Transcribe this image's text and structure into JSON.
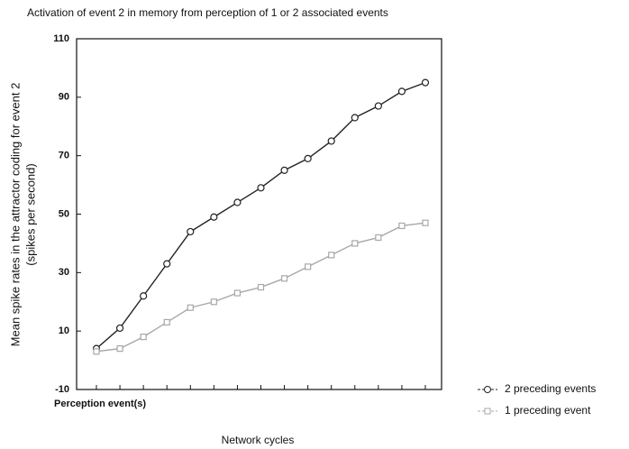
{
  "chart_data": {
    "type": "line",
    "title": "Activation of event 2 in memory from perception of 1 or 2 associated events",
    "x_label": "Network cycles",
    "y_label": [
      "Mean spike rates in the attractor coding for event 2",
      "(spikes per second)"
    ],
    "categories": [
      "Perception event(s)",
      null,
      null,
      null,
      null,
      null,
      null,
      null,
      null,
      null,
      null,
      null,
      null,
      null,
      null
    ],
    "series": [
      {
        "name": "2 preceding events",
        "color": "#222222",
        "marker": "circle",
        "values": [
          4,
          11,
          22,
          33,
          44,
          49,
          54,
          59,
          65,
          69,
          75,
          83,
          87,
          92,
          95
        ]
      },
      {
        "name": "1 preceding event",
        "color": "#a8a8a8",
        "marker": "square",
        "values": [
          3,
          4,
          8,
          13,
          18,
          20,
          23,
          25,
          28,
          32,
          36,
          40,
          42,
          46,
          47
        ]
      }
    ],
    "ylim": [
      -10,
      110
    ],
    "yticks": [
      -10,
      10,
      30,
      50,
      70,
      90,
      110
    ],
    "grid": false,
    "legend": "lower right"
  }
}
